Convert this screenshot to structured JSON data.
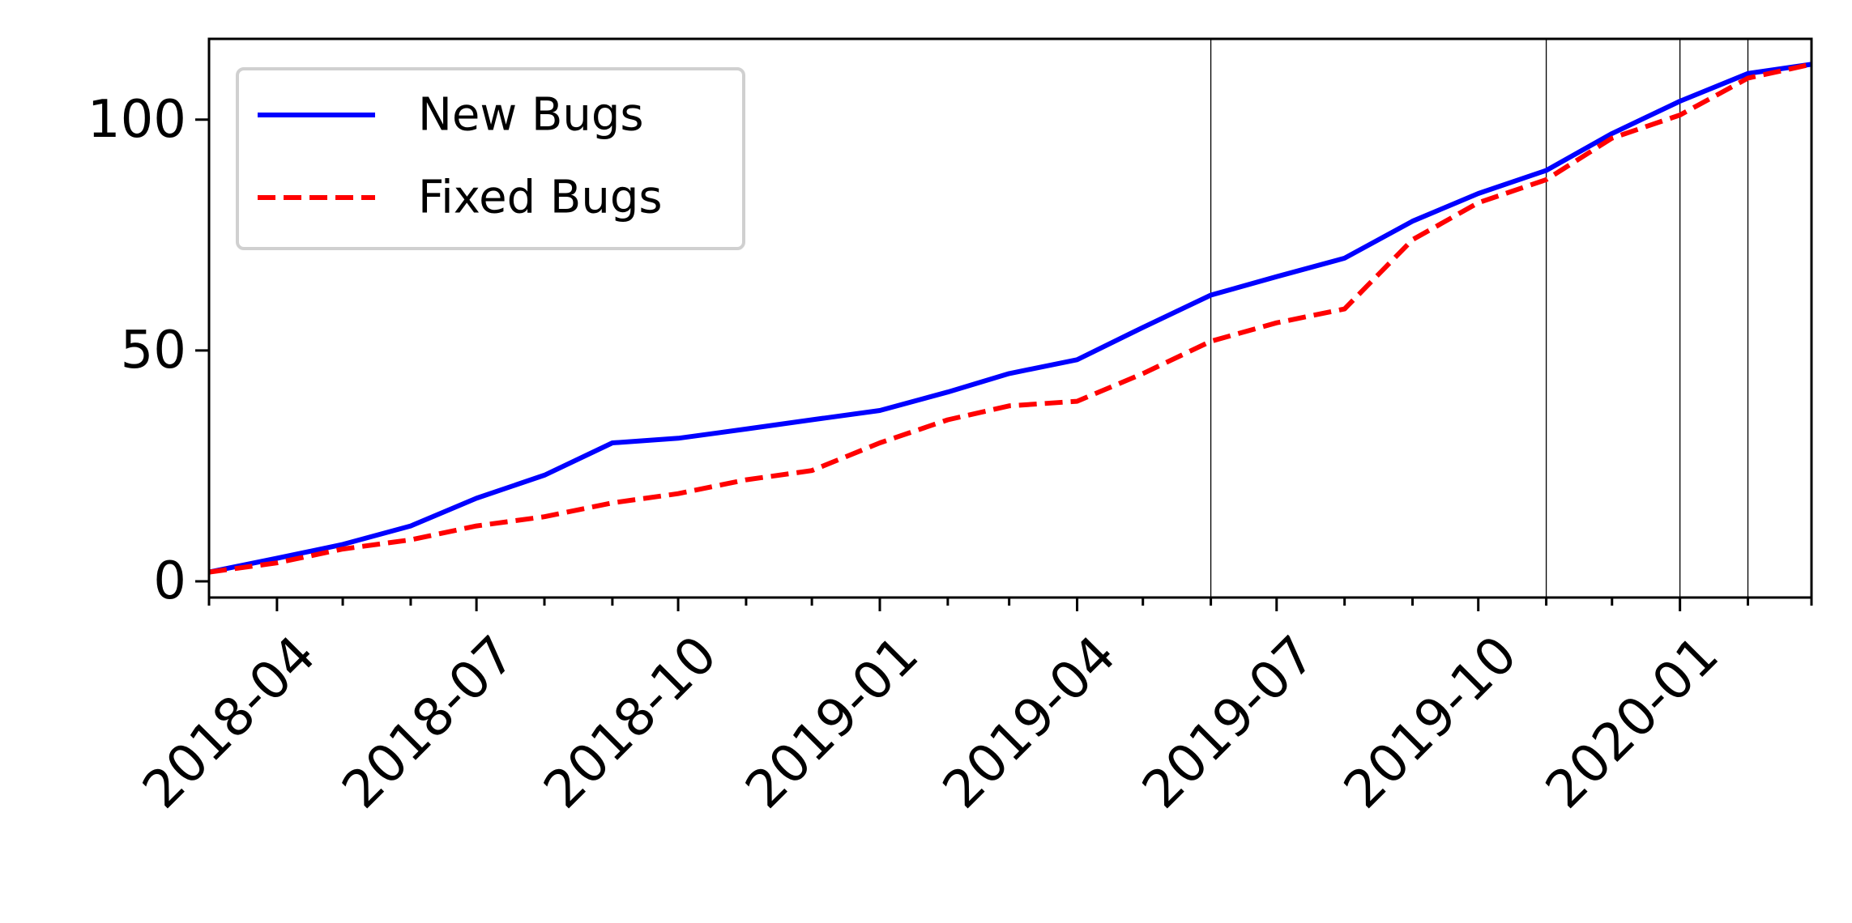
{
  "chart_data": {
    "type": "line",
    "x": [
      "2018-03-01",
      "2018-04-01",
      "2018-05-01",
      "2018-06-01",
      "2018-07-01",
      "2018-08-01",
      "2018-09-01",
      "2018-10-01",
      "2018-11-01",
      "2018-12-01",
      "2019-01-01",
      "2019-02-01",
      "2019-03-01",
      "2019-04-01",
      "2019-05-01",
      "2019-06-01",
      "2019-07-01",
      "2019-08-01",
      "2019-09-01",
      "2019-10-01",
      "2019-11-01",
      "2019-12-01",
      "2020-01-01",
      "2020-02-01",
      "2020-03-01"
    ],
    "series": [
      {
        "name": "New Bugs",
        "color": "#0000ff",
        "style": "solid",
        "values": [
          2,
          5,
          8,
          12,
          18,
          23,
          30,
          31,
          33,
          35,
          37,
          41,
          45,
          48,
          55,
          62,
          66,
          70,
          78,
          84,
          89,
          97,
          104,
          110,
          112
        ]
      },
      {
        "name": "Fixed Bugs",
        "color": "#ff0000",
        "style": "dashed",
        "values": [
          2,
          4,
          7,
          9,
          12,
          14,
          17,
          19,
          22,
          24,
          30,
          35,
          38,
          39,
          45,
          52,
          56,
          59,
          74,
          82,
          87,
          96,
          101,
          109,
          112
        ]
      }
    ],
    "xticks": [
      "2018-04",
      "2018-07",
      "2018-10",
      "2019-01",
      "2019-04",
      "2019-07",
      "2019-10",
      "2020-01"
    ],
    "yticks": [
      0,
      50,
      100
    ],
    "ylim": [
      -3.5,
      117.5
    ],
    "xlim": [
      "2018-03-01",
      "2020-03-01"
    ],
    "vlines": [
      "2019-06-01",
      "2019-11-01",
      "2020-01-01",
      "2020-02-01"
    ],
    "legend": "top-left",
    "grid": false
  }
}
